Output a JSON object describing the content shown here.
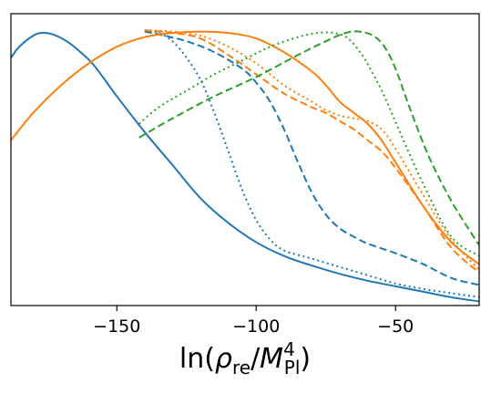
{
  "chart_data": {
    "type": "line",
    "title": "",
    "xlabel": {
      "prefix": "ln(",
      "rho": "ρ",
      "rho_sub": "re",
      "slash": "/",
      "M": "M",
      "M_sup": "4",
      "M_sub": "Pl",
      "suffix": ")"
    },
    "ylabel": "",
    "xlim": [
      -188,
      -20
    ],
    "ylim": [
      0,
      1.06
    ],
    "xticks": [
      -150,
      -100,
      -50
    ],
    "xtick_labels": [
      "−150",
      "−100",
      "−50"
    ],
    "grid": false,
    "legend": "none",
    "series": [
      {
        "color": "#1f77b4",
        "dash": "solid",
        "points": [
          [
            -188,
            0.9
          ],
          [
            -185,
            0.94
          ],
          [
            -180,
            0.98
          ],
          [
            -177,
            0.99
          ],
          [
            -173,
            0.985
          ],
          [
            -168,
            0.96
          ],
          [
            -163,
            0.92
          ],
          [
            -158,
            0.87
          ],
          [
            -150,
            0.76
          ],
          [
            -140,
            0.63
          ],
          [
            -130,
            0.51
          ],
          [
            -120,
            0.39
          ],
          [
            -110,
            0.3
          ],
          [
            -100,
            0.23
          ],
          [
            -90,
            0.18
          ],
          [
            -80,
            0.145
          ],
          [
            -70,
            0.115
          ],
          [
            -60,
            0.09
          ],
          [
            -50,
            0.07
          ],
          [
            -40,
            0.05
          ],
          [
            -30,
            0.03
          ],
          [
            -20,
            0.015
          ]
        ]
      },
      {
        "color": "#1f77b4",
        "dash": "dotted",
        "points": [
          [
            -140,
            1.0
          ],
          [
            -135,
            0.99
          ],
          [
            -130,
            0.96
          ],
          [
            -125,
            0.9
          ],
          [
            -120,
            0.82
          ],
          [
            -115,
            0.7
          ],
          [
            -110,
            0.56
          ],
          [
            -105,
            0.42
          ],
          [
            -100,
            0.31
          ],
          [
            -95,
            0.24
          ],
          [
            -90,
            0.2
          ],
          [
            -80,
            0.17
          ],
          [
            -70,
            0.14
          ],
          [
            -60,
            0.11
          ],
          [
            -50,
            0.08
          ],
          [
            -40,
            0.06
          ],
          [
            -30,
            0.045
          ],
          [
            -20,
            0.03
          ]
        ]
      },
      {
        "color": "#1f77b4",
        "dash": "dashed",
        "points": [
          [
            -140,
            0.995
          ],
          [
            -135,
            0.985
          ],
          [
            -125,
            0.96
          ],
          [
            -115,
            0.92
          ],
          [
            -105,
            0.86
          ],
          [
            -100,
            0.81
          ],
          [
            -95,
            0.74
          ],
          [
            -90,
            0.64
          ],
          [
            -85,
            0.52
          ],
          [
            -80,
            0.41
          ],
          [
            -75,
            0.33
          ],
          [
            -70,
            0.28
          ],
          [
            -65,
            0.25
          ],
          [
            -60,
            0.225
          ],
          [
            -50,
            0.19
          ],
          [
            -40,
            0.15
          ],
          [
            -30,
            0.1
          ],
          [
            -20,
            0.075
          ]
        ]
      },
      {
        "color": "#ff7f0e",
        "dash": "solid",
        "points": [
          [
            -188,
            0.6
          ],
          [
            -180,
            0.7
          ],
          [
            -170,
            0.8
          ],
          [
            -160,
            0.88
          ],
          [
            -150,
            0.94
          ],
          [
            -140,
            0.975
          ],
          [
            -130,
            0.99
          ],
          [
            -120,
            0.995
          ],
          [
            -110,
            0.99
          ],
          [
            -100,
            0.97
          ],
          [
            -90,
            0.92
          ],
          [
            -80,
            0.85
          ],
          [
            -75,
            0.8
          ],
          [
            -70,
            0.74
          ],
          [
            -65,
            0.7
          ],
          [
            -60,
            0.66
          ],
          [
            -55,
            0.6
          ],
          [
            -50,
            0.52
          ],
          [
            -40,
            0.36
          ],
          [
            -30,
            0.23
          ],
          [
            -20,
            0.15
          ]
        ]
      },
      {
        "color": "#ff7f0e",
        "dash": "dotted",
        "points": [
          [
            -140,
            1.0
          ],
          [
            -130,
            0.995
          ],
          [
            -120,
            0.98
          ],
          [
            -110,
            0.94
          ],
          [
            -100,
            0.88
          ],
          [
            -90,
            0.8
          ],
          [
            -80,
            0.74
          ],
          [
            -75,
            0.71
          ],
          [
            -70,
            0.69
          ],
          [
            -65,
            0.68
          ],
          [
            -60,
            0.67
          ],
          [
            -55,
            0.64
          ],
          [
            -50,
            0.57
          ],
          [
            -40,
            0.4
          ],
          [
            -30,
            0.24
          ],
          [
            -20,
            0.13
          ]
        ]
      },
      {
        "color": "#ff7f0e",
        "dash": "dashed",
        "points": [
          [
            -140,
            1.0
          ],
          [
            -130,
            0.99
          ],
          [
            -120,
            0.97
          ],
          [
            -110,
            0.91
          ],
          [
            -100,
            0.84
          ],
          [
            -90,
            0.77
          ],
          [
            -80,
            0.72
          ],
          [
            -75,
            0.7
          ],
          [
            -70,
            0.67
          ],
          [
            -65,
            0.64
          ],
          [
            -60,
            0.6
          ],
          [
            -55,
            0.56
          ],
          [
            -50,
            0.5
          ],
          [
            -40,
            0.36
          ],
          [
            -30,
            0.21
          ],
          [
            -20,
            0.12
          ]
        ]
      },
      {
        "color": "#2ca02c",
        "dash": "dotted",
        "points": [
          [
            -142,
            0.66
          ],
          [
            -135,
            0.72
          ],
          [
            -125,
            0.78
          ],
          [
            -115,
            0.84
          ],
          [
            -105,
            0.89
          ],
          [
            -95,
            0.94
          ],
          [
            -85,
            0.975
          ],
          [
            -78,
            0.99
          ],
          [
            -72,
            0.99
          ],
          [
            -67,
            0.97
          ],
          [
            -62,
            0.91
          ],
          [
            -58,
            0.84
          ],
          [
            -54,
            0.76
          ],
          [
            -48,
            0.62
          ],
          [
            -40,
            0.44
          ],
          [
            -30,
            0.25
          ],
          [
            -20,
            0.18
          ]
        ]
      },
      {
        "color": "#2ca02c",
        "dash": "dashed",
        "points": [
          [
            -142,
            0.61
          ],
          [
            -130,
            0.68
          ],
          [
            -115,
            0.76
          ],
          [
            -100,
            0.83
          ],
          [
            -85,
            0.91
          ],
          [
            -75,
            0.96
          ],
          [
            -68,
            0.99
          ],
          [
            -63,
            0.995
          ],
          [
            -58,
            0.98
          ],
          [
            -54,
            0.94
          ],
          [
            -50,
            0.86
          ],
          [
            -45,
            0.72
          ],
          [
            -38,
            0.54
          ],
          [
            -30,
            0.38
          ],
          [
            -22,
            0.25
          ],
          [
            -20,
            0.22
          ]
        ]
      }
    ]
  }
}
